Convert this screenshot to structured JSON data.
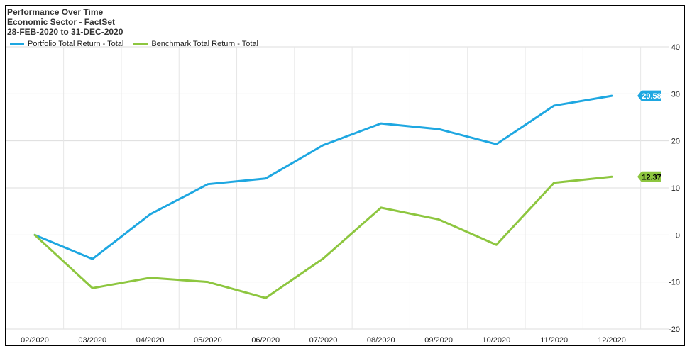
{
  "header": {
    "title": "Performance Over Time",
    "subtitle": "Economic Sector - FactSet",
    "date_range": "28-FEB-2020 to 31-DEC-2020"
  },
  "chart_data": {
    "type": "line",
    "categories": [
      "02/2020",
      "03/2020",
      "04/2020",
      "05/2020",
      "06/2020",
      "07/2020",
      "08/2020",
      "09/2020",
      "10/2020",
      "11/2020",
      "12/2020"
    ],
    "series": [
      {
        "name": "Portfolio Total Return - Total",
        "color": "#1ea7e1",
        "values": [
          0,
          -5.1,
          4.4,
          10.8,
          12.0,
          19.1,
          23.7,
          22.5,
          19.3,
          27.5,
          29.58
        ],
        "end_label": "29.58",
        "end_label_color": "#ffffff"
      },
      {
        "name": "Benchmark Total Return - Total",
        "color": "#8dc63f",
        "values": [
          0,
          -11.3,
          -9.1,
          -10.0,
          -13.4,
          -5.0,
          5.8,
          3.3,
          -2.1,
          11.1,
          12.37
        ],
        "end_label": "12.37",
        "end_label_color": "#000000"
      }
    ],
    "ylim": [
      -20,
      40
    ],
    "yticks": [
      "-20",
      "-10",
      "0",
      "10",
      "20",
      "30",
      "40"
    ],
    "ytick_values": [
      -20,
      -10,
      0,
      10,
      20,
      30,
      40
    ],
    "grid": true,
    "legend_position": "top-left",
    "y_axis_side": "right"
  }
}
